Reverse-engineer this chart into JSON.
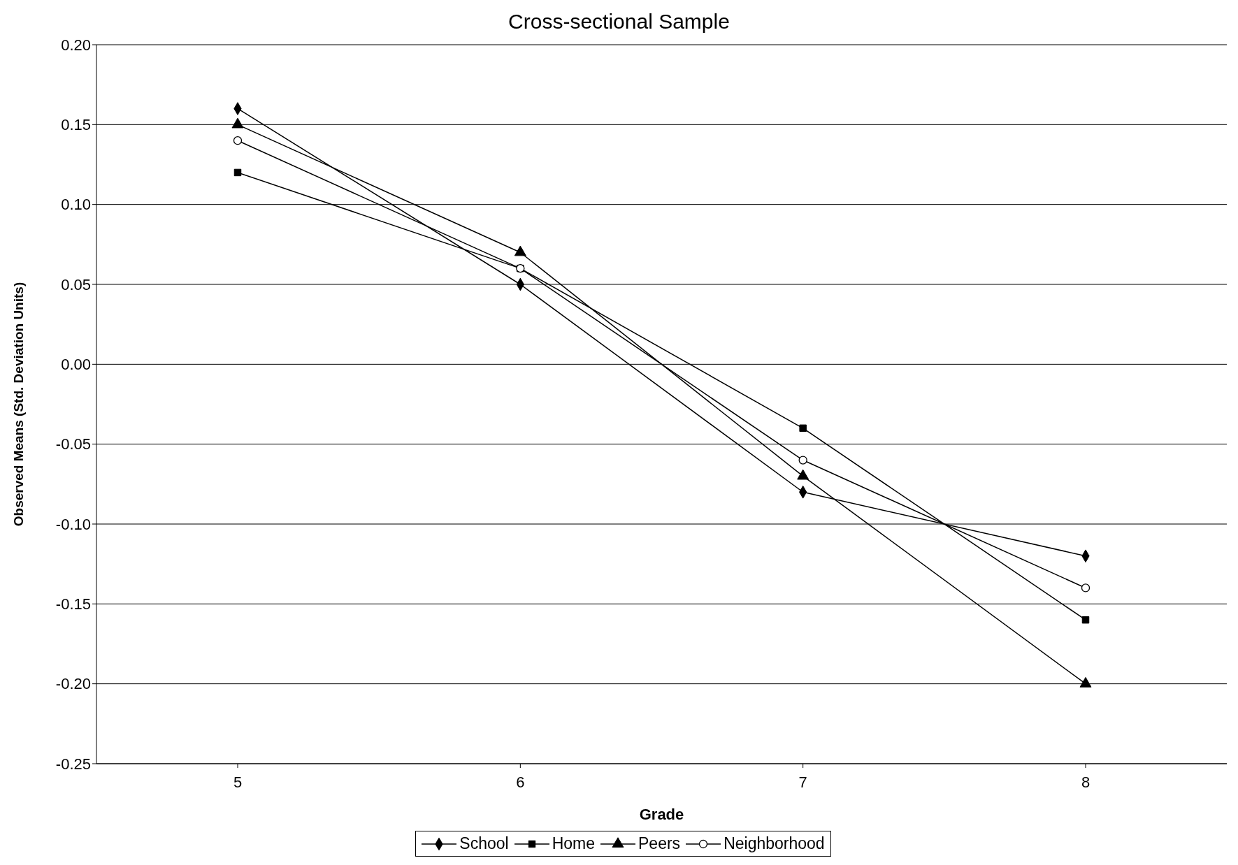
{
  "chart_data": {
    "type": "line",
    "title": "Cross-sectional Sample",
    "xlabel": "Grade",
    "ylabel": "Observed Means (Std. Deviation Units)",
    "categories": [
      "5",
      "6",
      "7",
      "8"
    ],
    "series": [
      {
        "name": "School",
        "color": "#000000",
        "marker": "diamond",
        "values": [
          0.16,
          0.05,
          -0.08,
          -0.12
        ]
      },
      {
        "name": "Home",
        "color": "#000000",
        "marker": "square",
        "values": [
          0.12,
          0.06,
          -0.04,
          -0.16
        ]
      },
      {
        "name": "Peers",
        "color": "#000000",
        "marker": "triangle",
        "values": [
          0.15,
          0.07,
          -0.07,
          -0.2
        ]
      },
      {
        "name": "Neighborhood",
        "color": "#000000",
        "marker": "circle",
        "values": [
          0.14,
          0.06,
          -0.06,
          -0.14
        ]
      }
    ],
    "ylim": [
      -0.25,
      0.2
    ],
    "yticks": [
      {
        "value": -0.25,
        "label": "-0.25"
      },
      {
        "value": -0.2,
        "label": "-0.20"
      },
      {
        "value": -0.15,
        "label": "-0.15"
      },
      {
        "value": -0.1,
        "label": "-0.10"
      },
      {
        "value": -0.05,
        "label": "-0.05"
      },
      {
        "value": 0,
        "label": "0.00"
      },
      {
        "value": 0.05,
        "label": "0.05"
      },
      {
        "value": 0.1,
        "label": "0.10"
      },
      {
        "value": 0.15,
        "label": "0.15"
      },
      {
        "value": 0.2,
        "label": "0.20"
      }
    ],
    "grid": "y",
    "legend": "bottom",
    "line_style": "solid"
  }
}
